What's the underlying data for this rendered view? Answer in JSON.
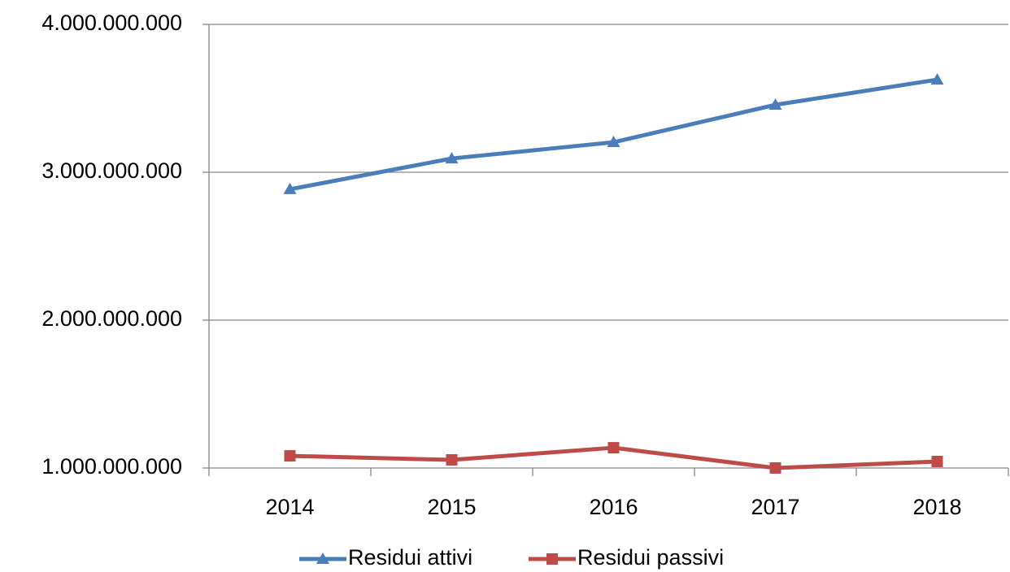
{
  "chart_data": {
    "type": "line",
    "categories": [
      "2014",
      "2015",
      "2016",
      "2017",
      "2018"
    ],
    "series": [
      {
        "name": "Residui attivi",
        "color": "#4a7ebb",
        "marker": "triangle",
        "values": [
          2885000000,
          3093000000,
          3203000000,
          3456000000,
          3626000000
        ]
      },
      {
        "name": "Residui passivi",
        "color": "#be4b48",
        "marker": "square",
        "values": [
          1082000000,
          1055000000,
          1137000000,
          1000000000,
          1044000000
        ]
      }
    ],
    "ylim": [
      1000000000,
      4000000000
    ],
    "yticks": [
      {
        "value": 1000000000,
        "label": "1.000.000.000"
      },
      {
        "value": 2000000000,
        "label": "2.000.000.000"
      },
      {
        "value": 3000000000,
        "label": "3.000.000.000"
      },
      {
        "value": 4000000000,
        "label": "4.000.000.000"
      }
    ],
    "grid": true,
    "legend": "bottom"
  }
}
